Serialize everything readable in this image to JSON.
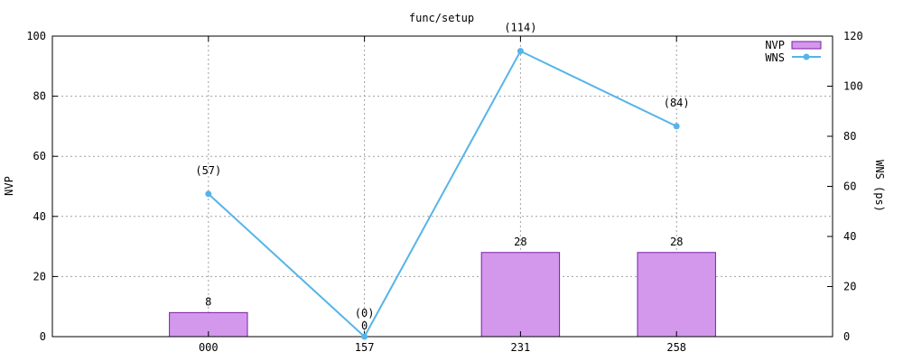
{
  "chart_data": {
    "type": "bar",
    "title": "func/setup",
    "categories": [
      "000",
      "157",
      "231",
      "258"
    ],
    "series": [
      {
        "name": "NVP",
        "type": "bar",
        "axis": "left",
        "values": [
          8,
          0,
          28,
          28
        ],
        "labels": [
          "8",
          "0",
          "28",
          "28"
        ],
        "color": "#d398ec",
        "stroke": "#7a1fa2"
      },
      {
        "name": "WNS",
        "type": "line",
        "axis": "right",
        "values": [
          57,
          0,
          114,
          84
        ],
        "labels": [
          "(57)",
          "(0)",
          "(114)",
          "(84)"
        ],
        "color": "#56b4e9"
      }
    ],
    "ylabel": "NVP",
    "y2label": "WNS (ps)",
    "ylim": [
      0,
      100
    ],
    "y2lim": [
      0,
      120
    ],
    "yticks": [
      "0",
      "20",
      "40",
      "60",
      "80",
      "100"
    ],
    "y2ticks": [
      "0",
      "20",
      "40",
      "60",
      "80",
      "100",
      "120"
    ],
    "grid": true,
    "legend": "top-right"
  }
}
